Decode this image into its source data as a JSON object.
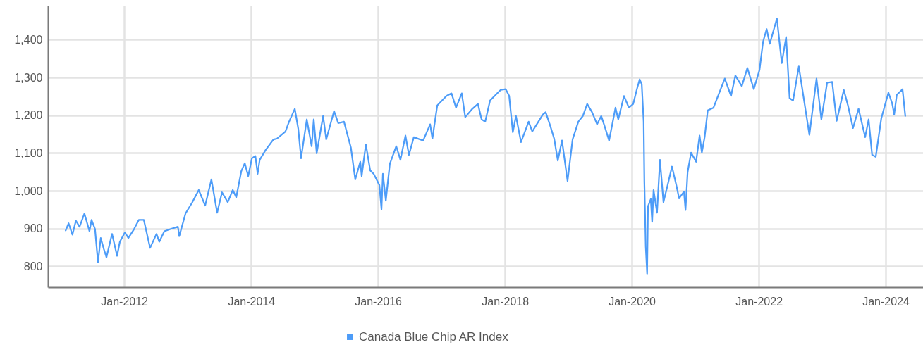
{
  "chart_data": {
    "type": "line",
    "x": [
      "2011-01-29",
      "2011-02-15",
      "2011-03-09",
      "2011-03-29",
      "2011-04-19",
      "2011-05-17",
      "2011-06-15",
      "2011-06-27",
      "2011-07-17",
      "2011-08-03",
      "2011-08-19",
      "2011-09-05",
      "2011-09-21",
      "2011-10-23",
      "2011-11-21",
      "2011-12-07",
      "2012-01-05",
      "2012-01-25",
      "2012-02-27",
      "2012-03-25",
      "2012-04-23",
      "2012-05-29",
      "2012-07-05",
      "2012-07-21",
      "2012-08-19",
      "2012-09-25",
      "2012-11-05",
      "2012-11-13",
      "2012-12-19",
      "2013-01-25",
      "2013-03-05",
      "2013-04-11",
      "2013-05-17",
      "2013-06-19",
      "2013-07-17",
      "2013-08-19",
      "2013-09-17",
      "2013-10-07",
      "2013-11-05",
      "2013-11-25",
      "2013-12-15",
      "2014-01-05",
      "2014-01-25",
      "2014-02-07",
      "2014-02-19",
      "2014-03-25",
      "2014-05-09",
      "2014-05-29",
      "2014-07-17",
      "2014-08-07",
      "2014-09-09",
      "2014-09-29",
      "2014-10-15",
      "2014-11-17",
      "2014-12-15",
      "2014-12-27",
      "2015-01-13",
      "2015-02-19",
      "2015-03-09",
      "2015-04-23",
      "2015-05-17",
      "2015-06-19",
      "2015-07-29",
      "2015-08-23",
      "2015-09-21",
      "2015-09-29",
      "2015-10-23",
      "2015-11-17",
      "2015-12-07",
      "2016-01-09",
      "2016-01-21",
      "2016-01-29",
      "2016-02-15",
      "2016-03-09",
      "2016-04-15",
      "2016-05-09",
      "2016-06-07",
      "2016-06-27",
      "2016-07-25",
      "2016-09-17",
      "2016-10-27",
      "2016-11-09",
      "2016-12-07",
      "2017-01-29",
      "2017-02-27",
      "2017-03-25",
      "2017-04-27",
      "2017-05-17",
      "2017-06-27",
      "2017-07-29",
      "2017-08-19",
      "2017-09-09",
      "2017-10-07",
      "2017-11-17",
      "2017-12-07",
      "2018-01-05",
      "2018-01-25",
      "2018-02-15",
      "2018-03-05",
      "2018-04-03",
      "2018-05-17",
      "2018-06-07",
      "2018-08-07",
      "2018-08-23",
      "2018-09-17",
      "2018-10-11",
      "2018-11-01",
      "2018-11-25",
      "2018-12-27",
      "2019-01-25",
      "2019-02-27",
      "2019-03-25",
      "2019-04-19",
      "2019-05-17",
      "2019-06-15",
      "2019-07-09",
      "2019-07-29",
      "2019-08-23",
      "2019-09-29",
      "2019-10-15",
      "2019-11-17",
      "2019-12-15",
      "2020-01-09",
      "2020-01-29",
      "2020-02-15",
      "2020-02-27",
      "2020-03-09",
      "2020-03-13",
      "2020-03-21",
      "2020-03-29",
      "2020-04-03",
      "2020-04-19",
      "2020-04-27",
      "2020-05-05",
      "2020-05-25",
      "2020-06-11",
      "2020-07-01",
      "2020-07-25",
      "2020-08-19",
      "2020-09-13",
      "2020-09-29",
      "2020-10-27",
      "2020-11-05",
      "2020-11-17",
      "2020-12-07",
      "2021-01-05",
      "2021-01-25",
      "2021-02-07",
      "2021-02-23",
      "2021-03-13",
      "2021-04-15",
      "2021-05-17",
      "2021-06-19",
      "2021-07-25",
      "2021-08-19",
      "2021-09-25",
      "2021-10-27",
      "2021-12-03",
      "2022-01-05",
      "2022-01-25",
      "2022-02-15",
      "2022-03-05",
      "2022-04-15",
      "2022-05-13",
      "2022-06-07",
      "2022-06-27",
      "2022-07-17",
      "2022-08-19",
      "2022-10-19",
      "2022-11-29",
      "2022-12-27",
      "2023-01-29",
      "2023-02-27",
      "2023-03-25",
      "2023-05-05",
      "2023-05-29",
      "2023-06-27",
      "2023-07-29",
      "2023-09-05",
      "2023-09-25",
      "2023-10-15",
      "2023-11-05",
      "2023-12-07",
      "2024-01-17",
      "2024-02-07",
      "2024-02-19",
      "2024-03-05",
      "2024-04-07",
      "2024-04-23"
    ],
    "series": [
      {
        "name": "Canada Blue Chip AR Index",
        "color": "#4d9cf8",
        "values": [
          895,
          914,
          884,
          921,
          905,
          940,
          893,
          923,
          899,
          811,
          875,
          847,
          824,
          886,
          828,
          865,
          890,
          875,
          899,
          923,
          923,
          849,
          886,
          865,
          893,
          899,
          905,
          880,
          940,
          968,
          1002,
          961,
          1030,
          942,
          996,
          970,
          1002,
          983,
          1052,
          1073,
          1039,
          1086,
          1092,
          1045,
          1082,
          1108,
          1136,
          1138,
          1157,
          1183,
          1217,
          1164,
          1086,
          1189,
          1118,
          1189,
          1099,
          1198,
          1136,
          1211,
          1179,
          1183,
          1114,
          1030,
          1077,
          1039,
          1123,
          1054,
          1045,
          1015,
          951,
          1045,
          974,
          1071,
          1118,
          1082,
          1146,
          1095,
          1142,
          1133,
          1176,
          1138,
          1226,
          1251,
          1258,
          1220,
          1258,
          1195,
          1217,
          1230,
          1189,
          1183,
          1239,
          1258,
          1267,
          1269,
          1251,
          1155,
          1198,
          1129,
          1183,
          1157,
          1202,
          1208,
          1174,
          1138,
          1080,
          1133,
          1026,
          1136,
          1183,
          1198,
          1230,
          1208,
          1176,
          1198,
          1170,
          1133,
          1220,
          1189,
          1251,
          1220,
          1230,
          1267,
          1295,
          1282,
          1183,
          1026,
          852,
          781,
          959,
          978,
          918,
          1002,
          942,
          1082,
          970,
          1015,
          1064,
          1015,
          980,
          998,
          949,
          1049,
          1101,
          1077,
          1146,
          1101,
          1142,
          1213,
          1220,
          1258,
          1297,
          1251,
          1305,
          1277,
          1325,
          1269,
          1320,
          1394,
          1428,
          1389,
          1456,
          1338,
          1407,
          1245,
          1239,
          1329,
          1148,
          1297,
          1189,
          1286,
          1288,
          1185,
          1267,
          1226,
          1166,
          1217,
          1142,
          1189,
          1095,
          1090,
          1192,
          1260,
          1232,
          1202,
          1254,
          1269,
          1198
        ]
      }
    ],
    "xlim": [
      "2010-10-19",
      "2024-08-03"
    ],
    "xticks": [
      {
        "value": "2012-01-01",
        "label": "Jan-2012"
      },
      {
        "value": "2014-01-01",
        "label": "Jan-2014"
      },
      {
        "value": "2016-01-01",
        "label": "Jan-2016"
      },
      {
        "value": "2018-01-01",
        "label": "Jan-2018"
      },
      {
        "value": "2020-01-01",
        "label": "Jan-2020"
      },
      {
        "value": "2022-01-01",
        "label": "Jan-2022"
      },
      {
        "value": "2024-01-01",
        "label": "Jan-2024"
      }
    ],
    "ylim": [
      745,
      1490
    ],
    "yticks": [
      {
        "value": 800,
        "label": "800"
      },
      {
        "value": 900,
        "label": "900"
      },
      {
        "value": 1000,
        "label": "1,000"
      },
      {
        "value": 1100,
        "label": "1,100"
      },
      {
        "value": 1200,
        "label": "1,200"
      },
      {
        "value": 1300,
        "label": "1,300"
      },
      {
        "value": 1400,
        "label": "1,400"
      }
    ],
    "grid": true,
    "legend": "bottom"
  }
}
